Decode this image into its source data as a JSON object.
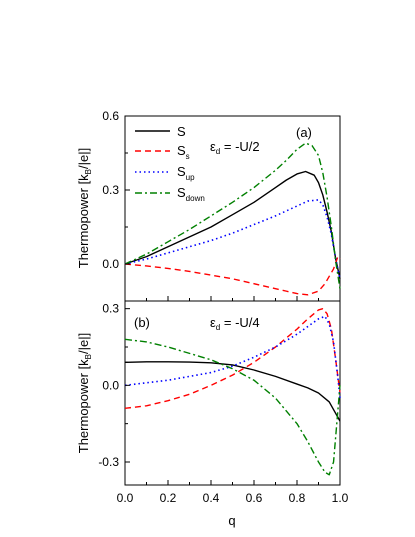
{
  "chart_data": [
    {
      "type": "line",
      "panel_label": "(a)",
      "annotation": "ε_d = -U/2",
      "annotation_parts": {
        "symbol": "ε",
        "subscript": "d",
        "rest": " = -U/2"
      },
      "xlim": [
        0.0,
        1.0
      ],
      "ylim": [
        -0.15,
        0.6
      ],
      "yticks": [
        0.0,
        0.3,
        0.6
      ],
      "ytick_labels": [
        "0.0",
        "0.3",
        "0.6"
      ],
      "ylabel": "Thermopower [k_B/|e|]",
      "legend": "top-left",
      "series": [
        {
          "name": "S",
          "label_base": "S",
          "label_sub": "",
          "color": "#000000",
          "dash": "solid",
          "x": [
            0,
            0.1,
            0.2,
            0.3,
            0.4,
            0.5,
            0.6,
            0.7,
            0.75,
            0.8,
            0.84,
            0.88,
            0.9,
            0.92,
            0.94,
            0.96,
            0.98,
            1.0
          ],
          "y": [
            0,
            0.03,
            0.07,
            0.11,
            0.15,
            0.2,
            0.25,
            0.31,
            0.34,
            0.365,
            0.375,
            0.36,
            0.33,
            0.28,
            0.21,
            0.13,
            0.02,
            -0.06
          ]
        },
        {
          "name": "S_s",
          "label_base": "S",
          "label_sub": "s",
          "color": "#ff0000",
          "dash": "dashed",
          "x": [
            0,
            0.1,
            0.2,
            0.3,
            0.4,
            0.5,
            0.6,
            0.7,
            0.75,
            0.8,
            0.85,
            0.9,
            0.93,
            0.95,
            0.97,
            0.99,
            1.0
          ],
          "y": [
            0,
            -0.008,
            -0.018,
            -0.03,
            -0.045,
            -0.06,
            -0.08,
            -0.1,
            -0.11,
            -0.12,
            -0.125,
            -0.11,
            -0.08,
            -0.05,
            -0.02,
            0.03,
            0.02
          ]
        },
        {
          "name": "S_up",
          "label_base": "S",
          "label_sub": "up",
          "color": "#0000ff",
          "dash": "dotted",
          "x": [
            0,
            0.1,
            0.2,
            0.3,
            0.4,
            0.5,
            0.6,
            0.7,
            0.8,
            0.85,
            0.9,
            0.92,
            0.94,
            0.96,
            0.98,
            1.0
          ],
          "y": [
            0,
            0.02,
            0.045,
            0.07,
            0.095,
            0.125,
            0.16,
            0.195,
            0.235,
            0.255,
            0.26,
            0.24,
            0.19,
            0.12,
            0.02,
            -0.06
          ]
        },
        {
          "name": "S_down",
          "label_base": "S",
          "label_sub": "down",
          "color": "#008000",
          "dash": "dashdot",
          "x": [
            0,
            0.1,
            0.2,
            0.3,
            0.4,
            0.5,
            0.6,
            0.7,
            0.75,
            0.8,
            0.84,
            0.87,
            0.9,
            0.92,
            0.94,
            0.96,
            0.98,
            1.0
          ],
          "y": [
            0,
            0.04,
            0.09,
            0.14,
            0.195,
            0.25,
            0.31,
            0.38,
            0.42,
            0.465,
            0.49,
            0.48,
            0.44,
            0.37,
            0.27,
            0.15,
            0.01,
            -0.1
          ]
        }
      ]
    },
    {
      "type": "line",
      "panel_label": "(b)",
      "annotation": "ε_d = -U/4",
      "annotation_parts": {
        "symbol": "ε",
        "subscript": "d",
        "rest": " = -U/4"
      },
      "xlim": [
        0.0,
        1.0
      ],
      "ylim": [
        -0.39,
        0.33
      ],
      "yticks": [
        -0.3,
        0.0,
        0.3
      ],
      "ytick_labels": [
        "-0.3",
        "0.0",
        "0.3"
      ],
      "xticks": [
        0.0,
        0.2,
        0.4,
        0.6,
        0.8,
        1.0
      ],
      "xtick_labels": [
        "0.0",
        "0.2",
        "0.4",
        "0.6",
        "0.8",
        "1.0"
      ],
      "xlabel": "q",
      "ylabel": "Thermopower [k_B/|e|]",
      "series": [
        {
          "name": "S",
          "color": "#000000",
          "dash": "solid",
          "x": [
            0,
            0.1,
            0.2,
            0.3,
            0.4,
            0.5,
            0.6,
            0.7,
            0.8,
            0.85,
            0.9,
            0.95,
            0.98,
            1.0
          ],
          "y": [
            0.09,
            0.092,
            0.092,
            0.091,
            0.088,
            0.08,
            0.06,
            0.035,
            0.005,
            -0.01,
            -0.03,
            -0.065,
            -0.11,
            -0.14
          ]
        },
        {
          "name": "S_s",
          "color": "#ff0000",
          "dash": "dashed",
          "x": [
            0,
            0.1,
            0.2,
            0.3,
            0.4,
            0.5,
            0.6,
            0.7,
            0.8,
            0.85,
            0.9,
            0.92,
            0.94,
            0.96,
            0.98,
            1.0
          ],
          "y": [
            -0.09,
            -0.08,
            -0.06,
            -0.035,
            0.0,
            0.04,
            0.09,
            0.15,
            0.22,
            0.26,
            0.295,
            0.3,
            0.28,
            0.22,
            0.1,
            -0.03
          ]
        },
        {
          "name": "S_up",
          "color": "#0000ff",
          "dash": "dotted",
          "x": [
            0,
            0.1,
            0.2,
            0.3,
            0.4,
            0.5,
            0.6,
            0.7,
            0.8,
            0.85,
            0.9,
            0.93,
            0.95,
            0.97,
            0.99,
            1.0
          ],
          "y": [
            0.0,
            0.01,
            0.02,
            0.035,
            0.05,
            0.075,
            0.11,
            0.15,
            0.2,
            0.23,
            0.26,
            0.27,
            0.24,
            0.17,
            0.03,
            -0.05
          ]
        },
        {
          "name": "S_down",
          "color": "#008000",
          "dash": "dashdot",
          "x": [
            0,
            0.1,
            0.2,
            0.3,
            0.4,
            0.5,
            0.6,
            0.7,
            0.8,
            0.85,
            0.9,
            0.93,
            0.95,
            0.97,
            0.99,
            1.0
          ],
          "y": [
            0.18,
            0.17,
            0.15,
            0.125,
            0.1,
            0.065,
            0.02,
            -0.05,
            -0.15,
            -0.22,
            -0.3,
            -0.34,
            -0.35,
            -0.3,
            -0.1,
            0.0
          ]
        }
      ]
    }
  ]
}
